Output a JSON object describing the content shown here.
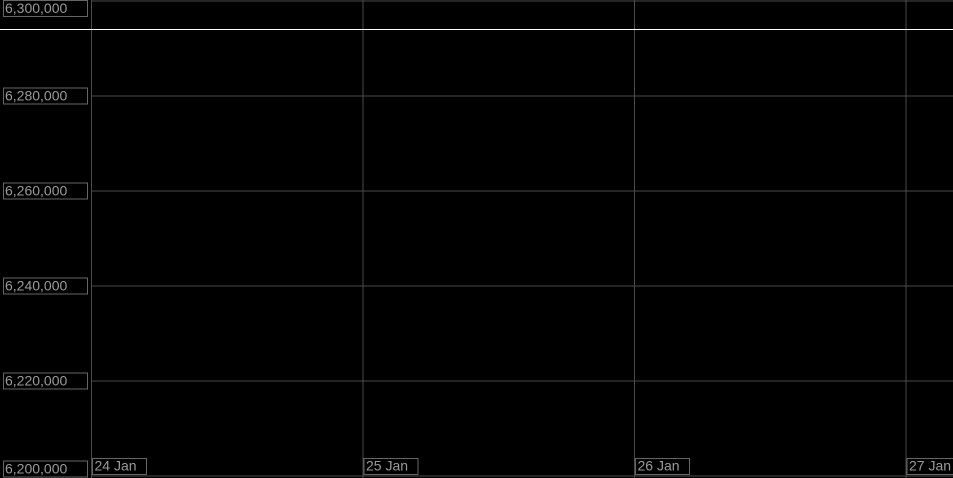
{
  "chart_data": {
    "type": "line",
    "categories": [
      "24 Jan",
      "25 Jan",
      "26 Jan",
      "27 Jan"
    ],
    "series": [
      {
        "color": "#ffffff",
        "values": [
          6294000,
          6294000,
          6294000,
          6294000
        ]
      }
    ],
    "ylim": [
      6200000,
      6300000
    ],
    "yticks": [
      {
        "value": 6200000,
        "label": "6,200,000"
      },
      {
        "value": 6220000,
        "label": "6,220,000"
      },
      {
        "value": 6240000,
        "label": "6,240,000"
      },
      {
        "value": 6260000,
        "label": "6,260,000"
      },
      {
        "value": 6280000,
        "label": "6,280,000"
      },
      {
        "value": 6300000,
        "label": "6,300,000"
      }
    ],
    "grid": true
  }
}
